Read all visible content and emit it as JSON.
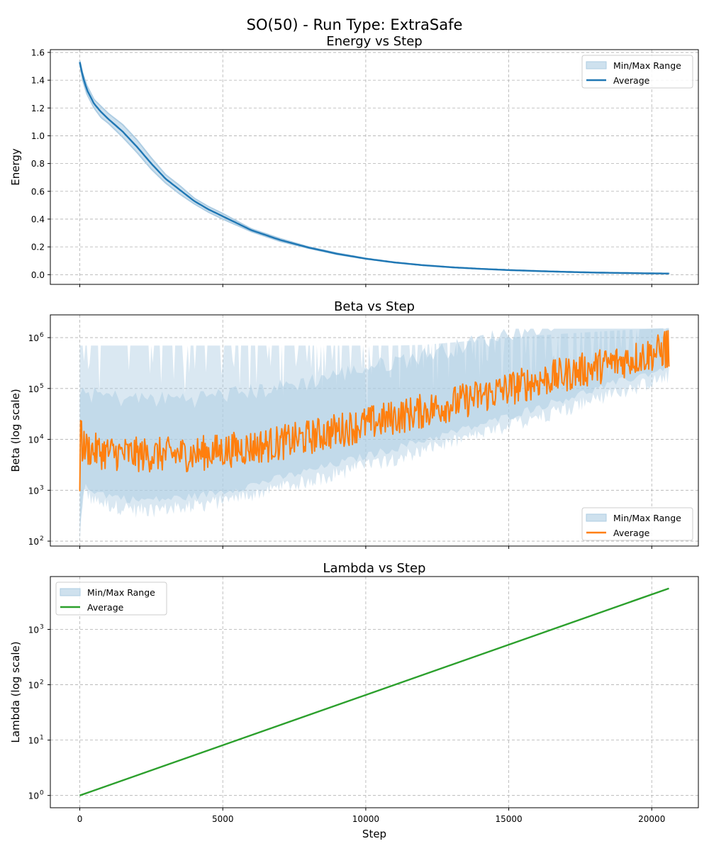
{
  "figure": {
    "title": "SO(50) - Run Type: ExtraSafe"
  },
  "colors": {
    "energy": "#1f77b4",
    "beta": "#ff7f0e",
    "lambda": "#2ca02c",
    "range_fill": "#aecde3",
    "grid": "#b0b0b0"
  },
  "chart_data": [
    {
      "id": "energy",
      "type": "line",
      "title": "Energy vs Step",
      "xlabel": "",
      "ylabel": "Energy",
      "xlim": [
        -1030,
        21630
      ],
      "ylim": [
        -0.07,
        1.62
      ],
      "yscale": "linear",
      "xticks": [
        0,
        5000,
        10000,
        15000,
        20000
      ],
      "show_xticklabels": false,
      "yticks": [
        {
          "value": 0.0,
          "label": "0.0"
        },
        {
          "value": 0.2,
          "label": "0.2"
        },
        {
          "value": 0.4,
          "label": "0.4"
        },
        {
          "value": 0.6,
          "label": "0.6"
        },
        {
          "value": 0.8,
          "label": "0.8"
        },
        {
          "value": 1.0,
          "label": "1.0"
        },
        {
          "value": 1.2,
          "label": "1.2"
        },
        {
          "value": 1.4,
          "label": "1.4"
        },
        {
          "value": 1.6,
          "label": "1.6"
        }
      ],
      "legend": {
        "position": "upper-right",
        "entries": [
          "Min/Max Range",
          "Average"
        ]
      },
      "x": [
        0,
        100,
        250,
        500,
        750,
        1000,
        1500,
        2000,
        2500,
        3000,
        3500,
        4000,
        4500,
        5000,
        5500,
        6000,
        7000,
        8000,
        9000,
        10000,
        11000,
        12000,
        13000,
        14000,
        15000,
        16000,
        17000,
        18000,
        19000,
        20000,
        20600
      ],
      "series": [
        {
          "name": "Average",
          "values": [
            1.53,
            1.43,
            1.33,
            1.23,
            1.17,
            1.12,
            1.03,
            0.92,
            0.8,
            0.69,
            0.61,
            0.53,
            0.47,
            0.42,
            0.37,
            0.32,
            0.25,
            0.195,
            0.15,
            0.115,
            0.088,
            0.068,
            0.053,
            0.042,
            0.033,
            0.026,
            0.02,
            0.015,
            0.012,
            0.009,
            0.008
          ]
        },
        {
          "name": "Min",
          "values": [
            1.52,
            1.4,
            1.3,
            1.2,
            1.13,
            1.09,
            0.99,
            0.88,
            0.76,
            0.66,
            0.58,
            0.51,
            0.45,
            0.4,
            0.355,
            0.31,
            0.24,
            0.19,
            0.146,
            0.113,
            0.087,
            0.067,
            0.052,
            0.041,
            0.032,
            0.025,
            0.019,
            0.014,
            0.011,
            0.008,
            0.007
          ]
        },
        {
          "name": "Max",
          "values": [
            1.54,
            1.45,
            1.36,
            1.26,
            1.21,
            1.16,
            1.08,
            0.97,
            0.84,
            0.72,
            0.64,
            0.55,
            0.49,
            0.44,
            0.385,
            0.33,
            0.26,
            0.2,
            0.155,
            0.118,
            0.09,
            0.069,
            0.054,
            0.043,
            0.034,
            0.027,
            0.021,
            0.016,
            0.013,
            0.01,
            0.009
          ]
        }
      ]
    },
    {
      "id": "beta",
      "type": "line",
      "title": "Beta vs Step",
      "xlabel": "",
      "ylabel": "Beta (log scale)",
      "xlim": [
        -1030,
        21630
      ],
      "ylim": [
        80,
        2800000
      ],
      "yscale": "log",
      "xticks": [
        0,
        5000,
        10000,
        15000,
        20000
      ],
      "show_xticklabels": false,
      "yticks": [
        {
          "value": 100,
          "label": "10",
          "exp": "2"
        },
        {
          "value": 1000,
          "label": "10",
          "exp": "3"
        },
        {
          "value": 10000,
          "label": "10",
          "exp": "4"
        },
        {
          "value": 100000,
          "label": "10",
          "exp": "5"
        },
        {
          "value": 1000000,
          "label": "10",
          "exp": "6"
        }
      ],
      "legend": {
        "position": "lower-right",
        "entries": [
          "Min/Max Range",
          "Average"
        ]
      },
      "x": [
        0,
        150,
        500,
        1000,
        1500,
        2000,
        3000,
        4000,
        5000,
        6000,
        7000,
        8000,
        9000,
        10000,
        11000,
        12000,
        13000,
        14000,
        15000,
        16000,
        17000,
        18000,
        19000,
        20000,
        20600
      ],
      "series": [
        {
          "name": "Average",
          "values": [
            8000,
            7000,
            6000,
            5500,
            5200,
            5000,
            5000,
            5200,
            6000,
            7000,
            8500,
            11000,
            15000,
            20000,
            27000,
            36000,
            50000,
            70000,
            100000,
            140000,
            190000,
            260000,
            350000,
            480000,
            600000
          ]
        },
        {
          "name": "Min",
          "values": [
            100,
            900,
            600,
            500,
            450,
            400,
            420,
            480,
            600,
            800,
            1100,
            1500,
            2100,
            3000,
            4200,
            6000,
            8500,
            12000,
            18000,
            27000,
            40000,
            60000,
            90000,
            130000,
            170000
          ]
        },
        {
          "name": "Max",
          "values": [
            700000,
            700000,
            700000,
            700000,
            700000,
            700000,
            700000,
            700000,
            700000,
            700000,
            700000,
            700000,
            700000,
            700000,
            700000,
            720000,
            800000,
            900000,
            1000000,
            1100000,
            1200000,
            1300000,
            1400000,
            1500000,
            1550000
          ]
        }
      ]
    },
    {
      "id": "lambda",
      "type": "line",
      "title": "Lambda vs Step",
      "xlabel": "Step",
      "ylabel": "Lambda (log scale)",
      "xlim": [
        -1030,
        21630
      ],
      "ylim": [
        0.6,
        9000
      ],
      "yscale": "log",
      "xticks": [
        0,
        5000,
        10000,
        15000,
        20000
      ],
      "show_xticklabels": true,
      "xticklabels": [
        "0",
        "5000",
        "10000",
        "15000",
        "20000"
      ],
      "yticks": [
        {
          "value": 1,
          "label": "10",
          "exp": "0"
        },
        {
          "value": 10,
          "label": "10",
          "exp": "1"
        },
        {
          "value": 100,
          "label": "10",
          "exp": "2"
        },
        {
          "value": 1000,
          "label": "10",
          "exp": "3"
        }
      ],
      "legend": {
        "position": "upper-left",
        "entries": [
          "Min/Max Range",
          "Average"
        ]
      },
      "x": [
        0,
        20600
      ],
      "series": [
        {
          "name": "Average",
          "values": [
            1,
            5500
          ]
        },
        {
          "name": "Min",
          "values": [
            1,
            5500
          ]
        },
        {
          "name": "Max",
          "values": [
            1,
            5500
          ]
        }
      ]
    }
  ]
}
